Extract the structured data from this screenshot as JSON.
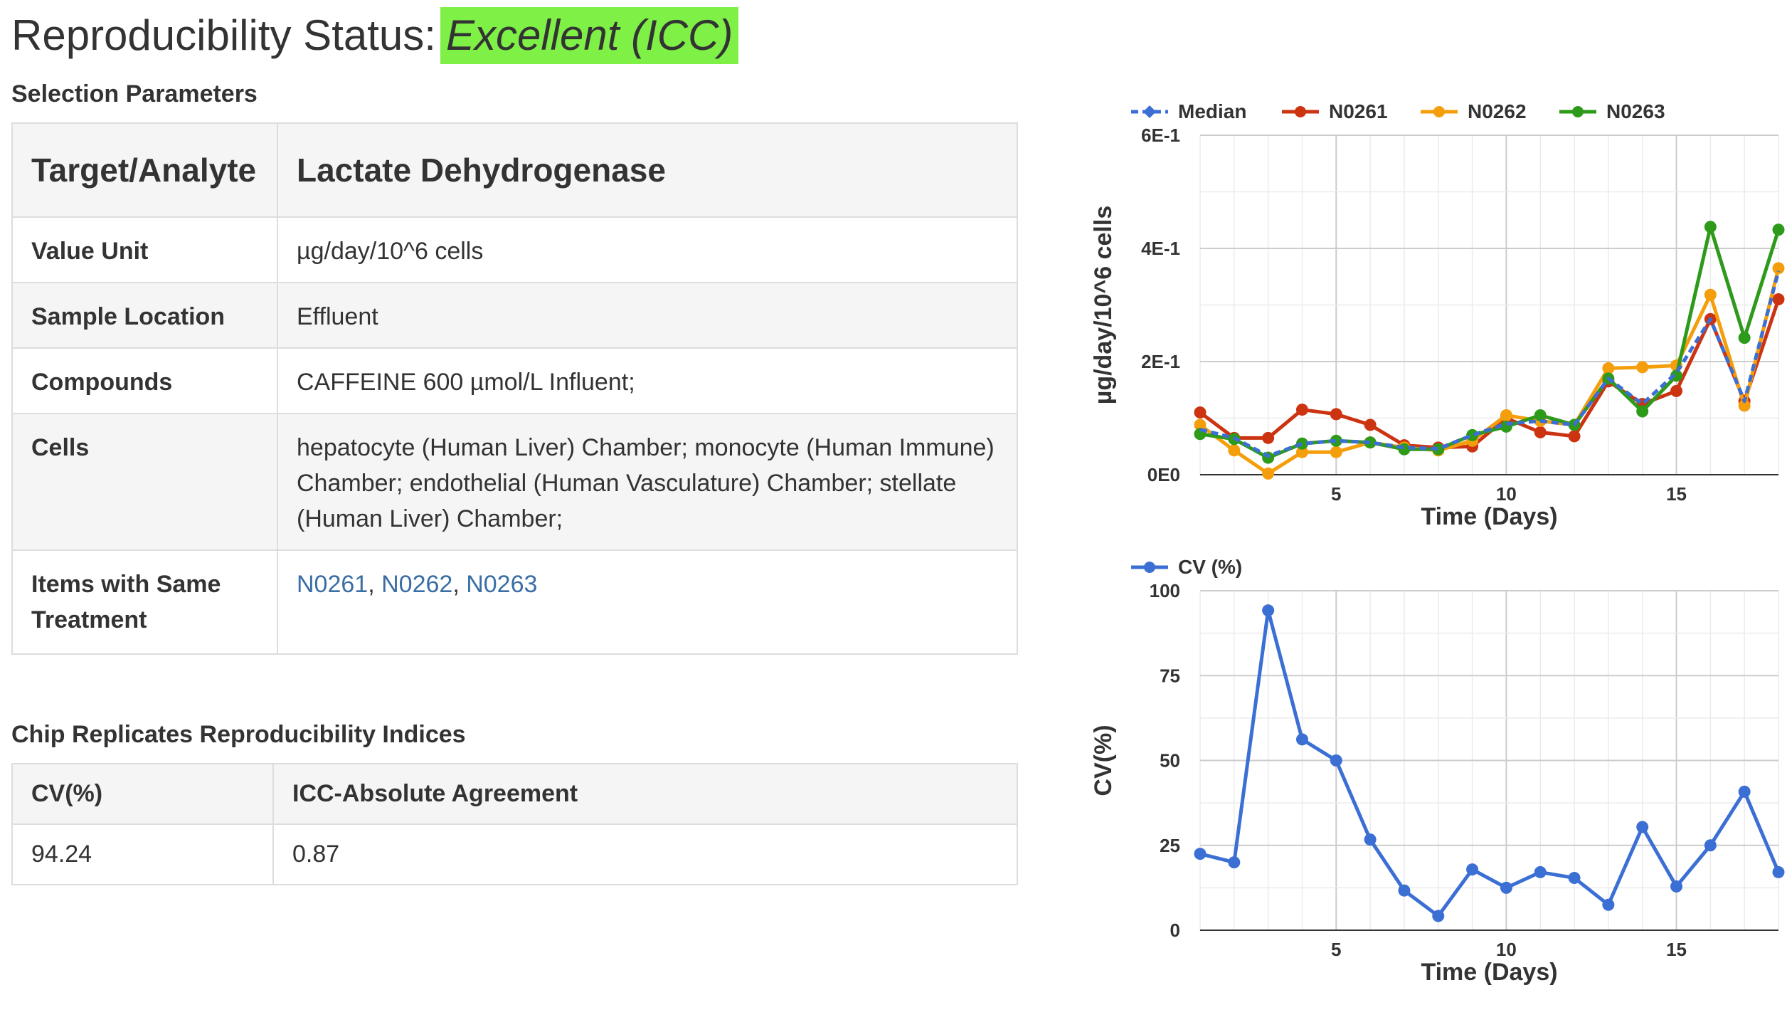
{
  "status": {
    "label": "Reproducibility Status:",
    "value": "Excellent (ICC)",
    "badge_color": "#7ef046"
  },
  "selection": {
    "heading": "Selection Parameters",
    "target_key": "Target/Analyte",
    "target_value": "Lactate Dehydrogenase",
    "rows": [
      {
        "key": "Value Unit",
        "value": "µg/day/10^6 cells"
      },
      {
        "key": "Sample Location",
        "value": "Effluent"
      },
      {
        "key": "Compounds",
        "value": "CAFFEINE 600 µmol/L Influent;"
      },
      {
        "key": "Cells",
        "value": "hepatocyte (Human Liver) Chamber; monocyte (Human Immune) Chamber; endothelial (Human Vasculature) Chamber; stellate (Human Liver) Chamber;"
      }
    ],
    "same_treatment_key": "Items with Same Treatment",
    "same_treatment_items": [
      "N0261",
      "N0262",
      "N0263"
    ]
  },
  "indices": {
    "heading": "Chip Replicates Reproducibility Indices",
    "headers": [
      "CV(%)",
      "ICC-Absolute Agreement"
    ],
    "values": [
      "94.24",
      "0.87"
    ]
  },
  "chart_data": [
    {
      "type": "line",
      "xlabel": "Time (Days)",
      "ylabel": "µg/day/10^6 cells",
      "ylim": [
        0,
        0.6
      ],
      "yticks": [
        0,
        0.2,
        0.4,
        0.6
      ],
      "ytick_labels": [
        "0E0",
        "2E-1",
        "4E-1",
        "6E-1"
      ],
      "xlim": [
        1,
        18
      ],
      "xticks": [
        5,
        10,
        15
      ],
      "legend_position": "top",
      "x": [
        1,
        2,
        3,
        4,
        5,
        6,
        7,
        8,
        9,
        10,
        11,
        12,
        13,
        14,
        15,
        16,
        17,
        18
      ],
      "series": [
        {
          "name": "Median",
          "color": "#3b6fd4",
          "dashed": true,
          "marker": "diamond",
          "values": [
            0.08,
            0.065,
            0.033,
            0.055,
            0.06,
            0.057,
            0.048,
            0.046,
            0.07,
            0.09,
            0.095,
            0.088,
            0.17,
            0.125,
            0.18,
            0.275,
            0.13,
            0.36
          ]
        },
        {
          "name": "N0261",
          "color": "#cc3311",
          "dashed": false,
          "marker": "circle",
          "values": [
            0.11,
            0.065,
            0.065,
            0.115,
            0.107,
            0.088,
            0.052,
            0.048,
            0.05,
            0.1,
            0.075,
            0.068,
            0.165,
            0.125,
            0.148,
            0.275,
            0.13,
            0.31
          ]
        },
        {
          "name": "N0262",
          "color": "#f59e0b",
          "dashed": false,
          "marker": "circle",
          "values": [
            0.088,
            0.043,
            0.002,
            0.04,
            0.04,
            0.057,
            0.048,
            0.043,
            0.06,
            0.105,
            0.095,
            0.088,
            0.188,
            0.19,
            0.193,
            0.318,
            0.122,
            0.365
          ]
        },
        {
          "name": "N0263",
          "color": "#2e9a1a",
          "dashed": false,
          "marker": "circle",
          "values": [
            0.072,
            0.063,
            0.03,
            0.055,
            0.06,
            0.057,
            0.045,
            0.045,
            0.07,
            0.085,
            0.105,
            0.088,
            0.17,
            0.112,
            0.175,
            0.438,
            0.242,
            0.433
          ]
        }
      ]
    },
    {
      "type": "line",
      "xlabel": "Time (Days)",
      "ylabel": "CV(%)",
      "ylim": [
        0,
        100
      ],
      "yticks": [
        0,
        25,
        50,
        75,
        100
      ],
      "xlim": [
        1,
        18
      ],
      "xticks": [
        5,
        10,
        15
      ],
      "legend_position": "top",
      "x": [
        1,
        2,
        3,
        4,
        5,
        6,
        7,
        8,
        9,
        10,
        11,
        12,
        13,
        14,
        15,
        16,
        17,
        18
      ],
      "series": [
        {
          "name": "CV (%)",
          "color": "#3b6fd4",
          "dashed": false,
          "marker": "circle",
          "values": [
            22.5,
            20,
            94.2,
            56.2,
            50,
            26.7,
            11.7,
            4.2,
            17.9,
            12.5,
            17.1,
            15.4,
            7.5,
            30.4,
            12.9,
            25,
            40.8,
            17.1
          ]
        }
      ]
    }
  ]
}
